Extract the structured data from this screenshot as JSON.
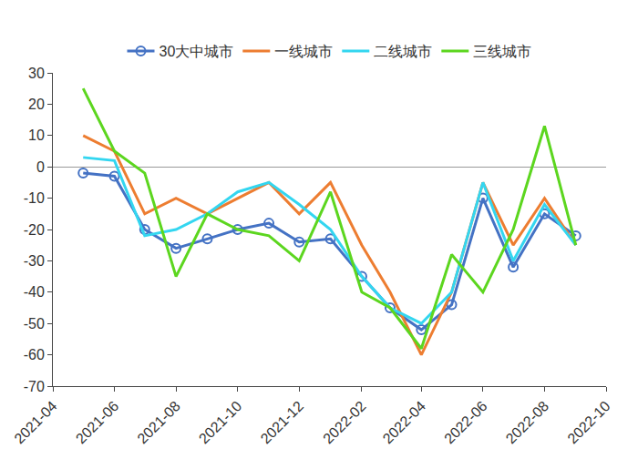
{
  "chart_data": {
    "type": "line",
    "x": [
      "2021-05",
      "2021-06",
      "2021-07",
      "2021-08",
      "2021-09",
      "2021-10",
      "2021-11",
      "2021-12",
      "2022-01",
      "2022-02",
      "2022-03",
      "2022-04",
      "2022-05",
      "2022-06",
      "2022-07",
      "2022-08",
      "2022-09"
    ],
    "series": [
      {
        "name": "30大中城市",
        "color": "#4472c4",
        "marker": "circle-open",
        "values": [
          -2,
          -3,
          -20,
          -26,
          -23,
          -20,
          -18,
          -24,
          -23,
          -35,
          -45,
          -52,
          -44,
          -10,
          -32,
          -15,
          -22
        ]
      },
      {
        "name": "一线城市",
        "color": "#ed7d31",
        "values": [
          10,
          5,
          -15,
          -10,
          -15,
          -10,
          -5,
          -15,
          -5,
          -25,
          -40,
          -60,
          -40,
          -5,
          -25,
          -10,
          -25
        ]
      },
      {
        "name": "二线城市",
        "color": "#33d6f0",
        "values": [
          3,
          2,
          -22,
          -20,
          -15,
          -8,
          -5,
          -12,
          -20,
          -35,
          -45,
          -50,
          -40,
          -5,
          -30,
          -12,
          -25
        ]
      },
      {
        "name": "三线城市",
        "color": "#5cd61f",
        "values": [
          25,
          5,
          -2,
          -35,
          -15,
          -20,
          -22,
          -30,
          -8,
          -40,
          -45,
          -58,
          -28,
          -40,
          -20,
          13,
          -25
        ]
      }
    ],
    "xlim": [
      "2021-04",
      "2022-10"
    ],
    "xticks": [
      "2021-04",
      "2021-06",
      "2021-08",
      "2021-10",
      "2021-12",
      "2022-02",
      "2022-04",
      "2022-06",
      "2022-08",
      "2022-10"
    ],
    "ylim": [
      -70,
      30
    ],
    "yticks": [
      -70,
      -60,
      -50,
      -40,
      -30,
      -20,
      -10,
      0,
      10,
      20,
      30
    ],
    "grid": false,
    "legend": "top"
  }
}
